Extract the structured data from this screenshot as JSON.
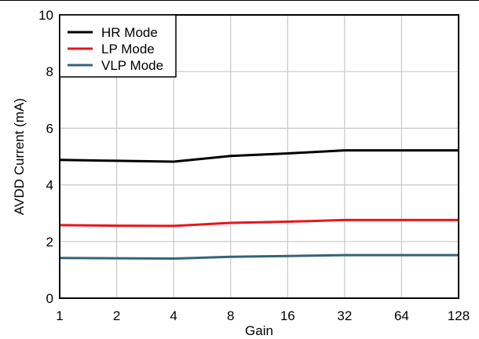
{
  "chart_data": {
    "type": "line",
    "title": "",
    "xlabel": "Gain",
    "ylabel": "AVDD Current (mA)",
    "x_scale": "log2",
    "x": [
      1,
      2,
      4,
      8,
      16,
      32,
      64,
      128
    ],
    "x_tick_labels": [
      "1",
      "2",
      "4",
      "8",
      "16",
      "32",
      "64",
      "128"
    ],
    "ylim": [
      0,
      10
    ],
    "y_ticks": [
      0,
      2,
      4,
      6,
      8,
      10
    ],
    "y_tick_labels": [
      "0",
      "2",
      "4",
      "6",
      "8",
      "10"
    ],
    "grid": true,
    "legend_position": "top-left",
    "series": [
      {
        "name": "HR Mode",
        "color": "#000000",
        "values": [
          4.88,
          4.85,
          4.82,
          5.02,
          5.11,
          5.22,
          5.22,
          5.22
        ]
      },
      {
        "name": "LP Mode",
        "color": "#e8161a",
        "values": [
          2.58,
          2.56,
          2.55,
          2.66,
          2.7,
          2.76,
          2.76,
          2.76
        ]
      },
      {
        "name": "VLP Mode",
        "color": "#346478",
        "values": [
          1.42,
          1.41,
          1.4,
          1.46,
          1.49,
          1.52,
          1.52,
          1.52
        ]
      }
    ]
  }
}
